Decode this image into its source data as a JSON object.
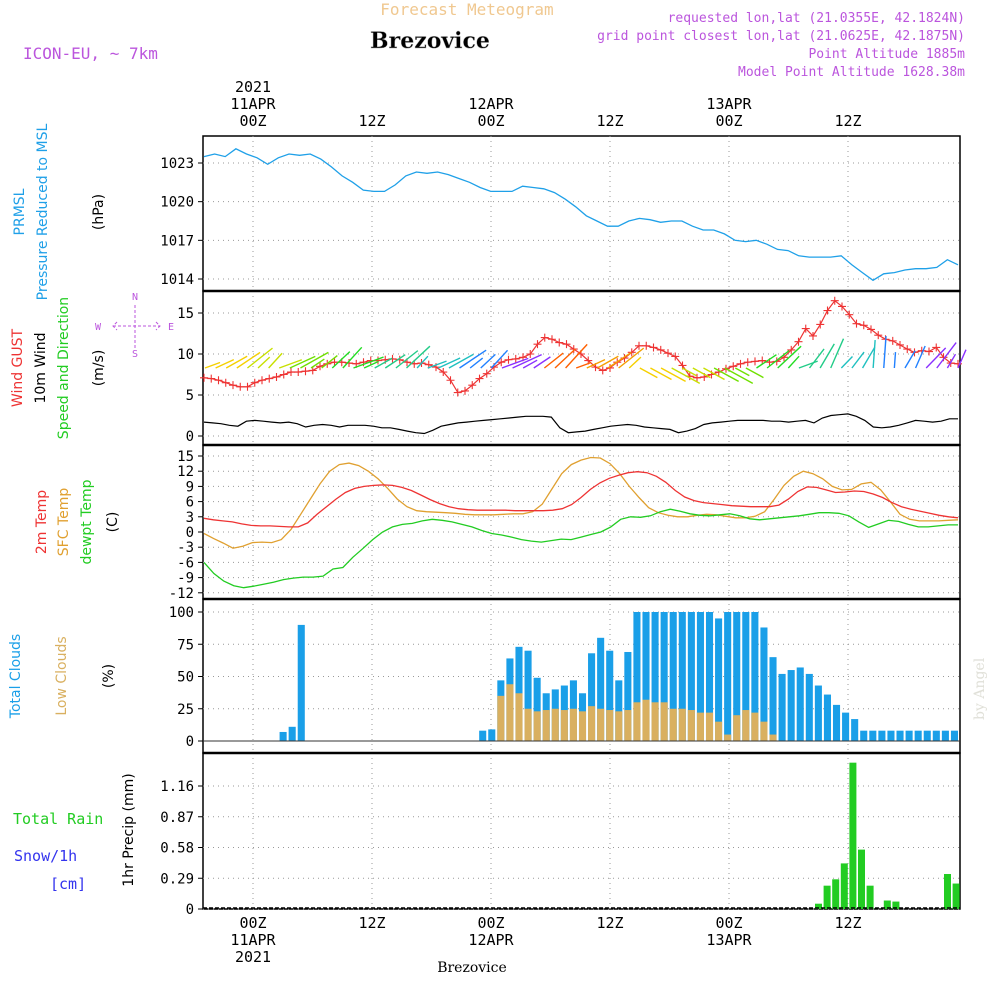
{
  "header": {
    "title": "Forecast Meteogram",
    "location": "Brezovice",
    "model": "ICON-EU, ~ 7km",
    "requested": "requested lon,lat (21.0355E, 42.1824N)",
    "grid_point": "grid point closest lon,lat (21.0625E, 42.1875N)",
    "point_alt": "Point Altitude 1885m",
    "model_alt": "Model Point Altitude 1628.38m",
    "watermark": "by Angel",
    "footer_location": "Brezovice"
  },
  "time_axis": {
    "top": [
      "2021\n11APR\n00Z",
      "12Z",
      "12APR\n00Z",
      "12Z",
      "13APR\n00Z",
      "12Z"
    ],
    "bottom": [
      "00Z\n11APR\n2021",
      "12Z",
      "00Z\n12APR",
      "12Z",
      "00Z\n13APR",
      "12Z"
    ]
  },
  "colors": {
    "pressure": "#1fa0e8",
    "gust": "#ee3333",
    "wind10m": "#000000",
    "t2m": "#ee3333",
    "tsfc": "#e0a030",
    "dewpt": "#22cc22",
    "total_clouds": "#1a9fe8",
    "low_clouds": "#d9b060",
    "rain": "#22cc22",
    "snow_label": "#3333ee",
    "header_purple": "#bb55dd",
    "title_orange": "#f0c890"
  },
  "chart_data": [
    {
      "type": "line",
      "panel": "pressure",
      "ylabel": [
        "PRMSL",
        "Pressure Reduced to MSL"
      ],
      "unit": "(hPa)",
      "yticks": [
        "1014",
        "1017",
        "1020",
        "1023"
      ],
      "ylim": [
        1013,
        1025
      ],
      "x_hours": [
        -4,
        -2,
        0,
        1,
        2,
        3,
        4,
        5,
        6,
        7,
        8,
        9,
        10,
        11,
        12,
        13,
        14,
        15,
        16,
        17,
        18,
        19,
        20,
        21,
        22,
        23,
        24,
        25,
        26,
        27,
        28,
        29,
        30,
        31,
        32,
        33,
        34,
        35,
        36,
        37,
        38,
        39,
        40,
        41,
        42,
        43,
        44,
        45,
        46,
        47,
        48,
        49,
        50,
        51,
        52,
        53,
        54,
        55,
        56,
        57,
        58,
        59,
        60,
        61,
        62,
        63,
        64,
        65,
        66,
        67,
        68,
        69,
        70,
        71,
        72,
        73,
        74,
        75,
        76,
        77,
        78
      ],
      "series": [
        {
          "values": [
            1023.5,
            1023.7,
            1023.5,
            1024.1,
            1023.7,
            1023.4,
            1022.9,
            1023.4,
            1023.7,
            1023.6,
            1023.7,
            1023.3,
            1022.7,
            1022.0,
            1021.5,
            1020.9,
            1020.8,
            1020.8,
            1021.3,
            1022.0,
            1022.3,
            1022.2,
            1022.3,
            1022.1,
            1021.8,
            1021.5,
            1021.1,
            1020.8,
            1020.8,
            1020.8,
            1021.2,
            1021.1,
            1021.0,
            1020.7,
            1020.2,
            1019.6,
            1018.9,
            1018.5,
            1018.1,
            1018.1,
            1018.5,
            1018.7,
            1018.6,
            1018.4,
            1018.5,
            1018.5,
            1018.1,
            1017.8,
            1017.8,
            1017.5,
            1017.0,
            1016.9,
            1017.0,
            1016.7,
            1016.3,
            1016.2,
            1015.8,
            1015.7,
            1015.7,
            1015.7,
            1015.8,
            1015.1,
            1014.5,
            1013.9,
            1014.4,
            1014.5,
            1014.7,
            1014.8,
            1014.8,
            1014.9,
            1015.5,
            1015.1
          ]
        }
      ]
    },
    {
      "type": "line",
      "panel": "wind",
      "ylabel": [
        "Wind GUST",
        "10m Wind",
        "Speed and Direction"
      ],
      "unit": "(m/s)",
      "yticks": [
        "0",
        "5",
        "10",
        "15"
      ],
      "ylim": [
        -1,
        18
      ],
      "compass": [
        "N",
        "S",
        "E",
        "W"
      ],
      "series": [
        {
          "name": "Wind GUST",
          "values": [
            7.1,
            7.0,
            6.8,
            6.5,
            6.2,
            6.0,
            6.0,
            6.5,
            6.8,
            7.0,
            7.2,
            7.5,
            7.8,
            7.8,
            7.9,
            8.0,
            8.5,
            8.8,
            9.0,
            9.0,
            8.9,
            8.8,
            9.0,
            9.2,
            9.2,
            9.3,
            9.4,
            9.3,
            9.0,
            8.8,
            8.9,
            8.7,
            8.4,
            7.8,
            6.8,
            5.3,
            5.5,
            6.2,
            7.0,
            7.6,
            8.4,
            9.0,
            9.3,
            9.4,
            9.6,
            10.0,
            11.2,
            12.0,
            11.8,
            11.4,
            11.2,
            10.6,
            10.0,
            9.2,
            8.4,
            8.0,
            8.3,
            9.0,
            9.5,
            10.2,
            11.0,
            11.0,
            10.8,
            10.5,
            10.1,
            9.7,
            8.6,
            7.3,
            7.1,
            7.2,
            7.5,
            7.8,
            8.2,
            8.5,
            8.8,
            9.0,
            9.1,
            9.2,
            9.0,
            9.1,
            9.6,
            10.5,
            11.5,
            13.1,
            12.2,
            13.6,
            15.3,
            16.5,
            15.8,
            14.8,
            13.7,
            13.5,
            13.0,
            12.3,
            11.8,
            11.6,
            11.1,
            10.6,
            10.2,
            10.4,
            10.3,
            10.8,
            9.6,
            8.9,
            8.8
          ]
        },
        {
          "name": "10m Wind",
          "values": [
            1.7,
            1.6,
            1.5,
            1.3,
            1.2,
            1.8,
            1.9,
            1.8,
            1.7,
            1.6,
            1.7,
            1.5,
            1.1,
            1.3,
            1.4,
            1.3,
            1.1,
            1.3,
            1.3,
            1.3,
            1.2,
            1.0,
            1.0,
            0.8,
            0.6,
            0.4,
            0.3,
            0.7,
            1.2,
            1.4,
            1.6,
            1.7,
            1.8,
            1.9,
            2.0,
            2.1,
            2.2,
            2.3,
            2.4,
            2.4,
            2.4,
            2.3,
            1.0,
            0.4,
            0.5,
            0.6,
            0.8,
            1.0,
            1.2,
            1.3,
            1.4,
            1.3,
            1.1,
            1.0,
            0.9,
            0.8,
            0.4,
            0.6,
            0.9,
            1.4,
            1.6,
            1.7,
            1.8,
            1.9,
            1.9,
            1.9,
            1.9,
            1.8,
            1.8,
            1.7,
            1.8,
            1.9,
            1.6,
            2.2,
            2.5,
            2.6,
            2.7,
            2.4,
            1.9,
            1.1,
            1.0,
            1.1,
            1.3,
            1.6,
            1.9,
            1.8,
            1.7,
            1.8,
            2.1,
            2.1
          ]
        }
      ]
    },
    {
      "type": "line",
      "panel": "temperature",
      "ylabel": [
        "2m Temp",
        "SFC Temp",
        "dewpt Temp"
      ],
      "unit": "(C)",
      "yticks": [
        "-12",
        "-9",
        "-6",
        "-3",
        "0",
        "3",
        "6",
        "9",
        "12",
        "15"
      ],
      "ylim": [
        -13.5,
        16.5
      ],
      "series": [
        {
          "name": "2m Temp",
          "values": [
            2.7,
            2.4,
            2.2,
            2.0,
            1.6,
            1.3,
            1.2,
            1.2,
            1.1,
            1.0,
            1.0,
            1.8,
            3.5,
            5.0,
            6.5,
            7.8,
            8.6,
            9.0,
            9.2,
            9.3,
            9.2,
            8.8,
            8.2,
            7.3,
            6.4,
            5.6,
            5.0,
            4.6,
            4.4,
            4.3,
            4.3,
            4.3,
            4.3,
            4.2,
            4.2,
            4.2,
            4.2,
            4.3,
            4.6,
            5.4,
            6.8,
            8.4,
            9.7,
            10.6,
            11.2,
            11.7,
            11.9,
            11.7,
            11.0,
            9.8,
            8.2,
            6.9,
            6.2,
            5.8,
            5.6,
            5.4,
            5.2,
            5.1,
            5.0,
            5.0,
            5.0,
            5.3,
            6.5,
            8.0,
            8.9,
            8.8,
            8.3,
            7.8,
            7.9,
            8.1,
            8.0,
            7.5,
            6.8,
            5.8,
            5.0,
            4.5,
            4.1,
            3.7,
            3.3,
            3.0,
            2.8
          ]
        },
        {
          "name": "SFC Temp",
          "values": [
            -0.3,
            -1.3,
            -2.2,
            -3.2,
            -2.8,
            -2.1,
            -2.0,
            -2.1,
            -1.5,
            0.5,
            3.5,
            6.5,
            9.5,
            12.0,
            13.3,
            13.6,
            13.1,
            12.0,
            10.5,
            8.6,
            6.5,
            5.0,
            4.2,
            4.0,
            3.9,
            3.8,
            3.7,
            3.5,
            3.4,
            3.4,
            3.4,
            3.5,
            3.6,
            3.6,
            4.0,
            5.5,
            8.5,
            11.5,
            13.3,
            14.2,
            14.7,
            14.6,
            13.5,
            11.5,
            9.0,
            6.8,
            4.8,
            3.8,
            3.3,
            3.0,
            3.0,
            3.3,
            3.5,
            3.4,
            3.1,
            2.8,
            2.8,
            3.1,
            4.0,
            6.5,
            9.2,
            11.0,
            12.0,
            11.5,
            10.5,
            9.0,
            8.3,
            8.4,
            9.5,
            9.8,
            8.3,
            6.0,
            3.5,
            2.5,
            2.2,
            2.2,
            2.2,
            2.3,
            2.4
          ]
        },
        {
          "name": "dewpt Temp",
          "values": [
            -6.0,
            -8.2,
            -9.7,
            -10.6,
            -11.0,
            -10.7,
            -10.3,
            -9.9,
            -9.4,
            -9.1,
            -8.9,
            -8.9,
            -8.7,
            -7.3,
            -7.0,
            -5.0,
            -3.3,
            -1.5,
            0.0,
            1.0,
            1.5,
            1.7,
            2.2,
            2.5,
            2.3,
            2.0,
            1.5,
            1.0,
            0.3,
            -0.3,
            -0.6,
            -1.0,
            -1.5,
            -1.8,
            -2.0,
            -1.7,
            -1.4,
            -1.5,
            -1.0,
            -0.5,
            0.0,
            1.0,
            2.5,
            3.0,
            2.9,
            3.2,
            4.0,
            4.5,
            4.1,
            3.6,
            3.3,
            3.2,
            3.4,
            3.6,
            3.2,
            2.6,
            2.4,
            2.6,
            2.8,
            3.0,
            3.2,
            3.5,
            3.8,
            3.8,
            3.7,
            3.2,
            2.0,
            0.9,
            1.6,
            2.3,
            2.1,
            1.5,
            1.0,
            1.0,
            1.2,
            1.4,
            1.4
          ]
        }
      ]
    },
    {
      "type": "bar",
      "panel": "clouds",
      "ylabel": [
        "Total Clouds",
        "Low Clouds"
      ],
      "unit": "(%)",
      "yticks": [
        "0",
        "25",
        "50",
        "75",
        "100"
      ],
      "ylim": [
        -5,
        105
      ],
      "series": [
        {
          "name": "Total Clouds",
          "values": [
            0,
            0,
            0,
            0,
            0,
            0,
            0,
            0,
            7,
            11,
            90,
            0,
            0,
            0,
            0,
            0,
            0,
            0,
            0,
            0,
            0,
            0,
            0,
            0,
            0,
            0,
            0,
            0,
            0,
            0,
            8,
            9,
            47,
            64,
            73,
            70,
            49,
            37,
            40,
            43,
            47,
            37,
            68,
            80,
            70,
            47,
            69,
            100,
            100,
            100,
            100,
            100,
            100,
            100,
            100,
            100,
            95,
            100,
            100,
            100,
            100,
            88,
            65,
            52,
            55,
            57,
            52,
            43,
            36,
            28,
            22,
            17,
            8,
            8,
            8,
            8,
            8,
            8,
            8,
            8,
            8,
            8,
            8
          ]
        },
        {
          "name": "Low Clouds",
          "values": [
            0,
            0,
            0,
            0,
            0,
            0,
            0,
            0,
            0,
            0,
            0,
            0,
            0,
            0,
            0,
            0,
            0,
            0,
            0,
            0,
            0,
            0,
            0,
            0,
            0,
            0,
            0,
            0,
            0,
            0,
            0,
            0,
            35,
            44,
            37,
            25,
            23,
            24,
            25,
            24,
            25,
            23,
            27,
            25,
            24,
            23,
            24,
            30,
            32,
            30,
            30,
            25,
            25,
            24,
            22,
            22,
            15,
            5,
            20,
            24,
            22,
            15,
            5,
            0,
            0,
            0,
            0,
            0,
            0,
            0,
            0,
            0,
            0,
            0,
            0,
            0,
            0,
            0,
            0,
            0,
            0,
            0,
            0
          ]
        }
      ]
    },
    {
      "type": "bar",
      "panel": "precip",
      "ylabel": [
        "1hr Precip (mm)"
      ],
      "side_labels": [
        "Total Rain",
        "Snow/1h",
        "[cm]"
      ],
      "yticks": [
        "0",
        "0.29",
        "0.58",
        "0.87",
        "1.16"
      ],
      "ylim": [
        0,
        1.45
      ],
      "series": [
        {
          "name": "Total Rain",
          "values": [
            0.05,
            0.22,
            0.28,
            0.43,
            1.38,
            0.56,
            0.22,
            0.0,
            0.08,
            0.07,
            0.0,
            0.0,
            0.0,
            0.0,
            0.0,
            0.33,
            0.24
          ]
        }
      ]
    }
  ]
}
